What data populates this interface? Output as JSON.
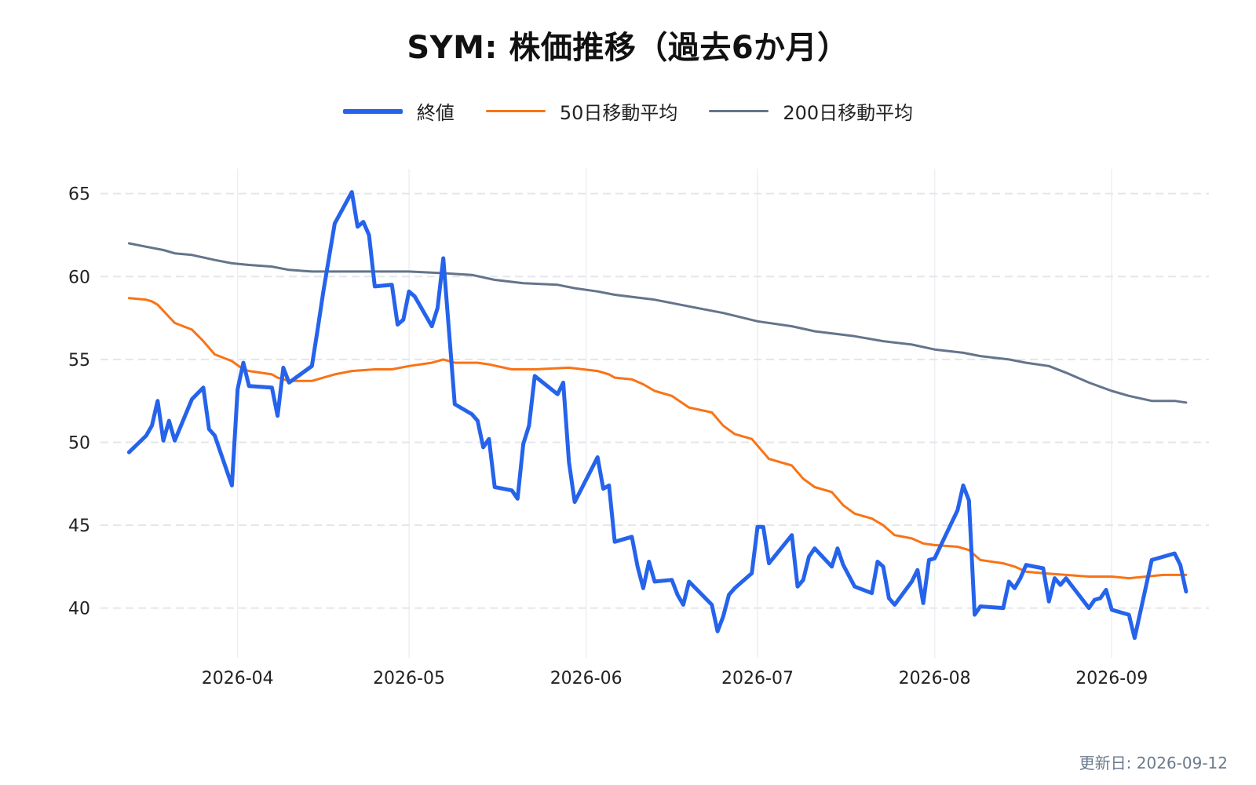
{
  "chart_data": {
    "type": "line",
    "title": "SYM: 株価推移（過去6か月）",
    "xlabel": "",
    "ylabel": "",
    "ylim": [
      37,
      66.5
    ],
    "y_ticks": [
      40,
      45,
      50,
      55,
      60,
      65
    ],
    "x_ticks": [
      {
        "label": "2026-04",
        "date": "2026-04-01"
      },
      {
        "label": "2026-05",
        "date": "2026-05-01"
      },
      {
        "label": "2026-06",
        "date": "2026-06-01"
      },
      {
        "label": "2026-07",
        "date": "2026-07-01"
      },
      {
        "label": "2026-08",
        "date": "2026-08-01"
      },
      {
        "label": "2026-09",
        "date": "2026-09-01"
      }
    ],
    "xlim": [
      "2026-03-08",
      "2026-09-18"
    ],
    "grid": true,
    "legend_position": "top-center",
    "series": [
      {
        "name": "終値",
        "color": "#2563eb",
        "width": 5,
        "points": [
          [
            "2026-03-13",
            49.4
          ],
          [
            "2026-03-16",
            50.4
          ],
          [
            "2026-03-17",
            51.0
          ],
          [
            "2026-03-18",
            52.5
          ],
          [
            "2026-03-19",
            50.1
          ],
          [
            "2026-03-20",
            51.3
          ],
          [
            "2026-03-21",
            50.1
          ],
          [
            "2026-03-24",
            52.6
          ],
          [
            "2026-03-26",
            53.3
          ],
          [
            "2026-03-27",
            50.8
          ],
          [
            "2026-03-28",
            50.4
          ],
          [
            "2026-03-31",
            47.4
          ],
          [
            "2026-04-01",
            53.2
          ],
          [
            "2026-04-02",
            54.8
          ],
          [
            "2026-04-03",
            53.4
          ],
          [
            "2026-04-07",
            53.3
          ],
          [
            "2026-04-08",
            51.6
          ],
          [
            "2026-04-09",
            54.5
          ],
          [
            "2026-04-10",
            53.6
          ],
          [
            "2026-04-14",
            54.6
          ],
          [
            "2026-04-15",
            56.8
          ],
          [
            "2026-04-16",
            59.1
          ],
          [
            "2026-04-18",
            63.2
          ],
          [
            "2026-04-21",
            65.1
          ],
          [
            "2026-04-22",
            63.0
          ],
          [
            "2026-04-23",
            63.3
          ],
          [
            "2026-04-24",
            62.5
          ],
          [
            "2026-04-25",
            59.4
          ],
          [
            "2026-04-28",
            59.5
          ],
          [
            "2026-04-29",
            57.1
          ],
          [
            "2026-04-30",
            57.4
          ],
          [
            "2026-05-01",
            59.1
          ],
          [
            "2026-05-02",
            58.8
          ],
          [
            "2026-05-05",
            57.0
          ],
          [
            "2026-05-06",
            58.1
          ],
          [
            "2026-05-07",
            61.1
          ],
          [
            "2026-05-09",
            52.3
          ],
          [
            "2026-05-12",
            51.7
          ],
          [
            "2026-05-13",
            51.3
          ],
          [
            "2026-05-14",
            49.7
          ],
          [
            "2026-05-15",
            50.2
          ],
          [
            "2026-05-16",
            47.3
          ],
          [
            "2026-05-19",
            47.1
          ],
          [
            "2026-05-20",
            46.6
          ],
          [
            "2026-05-21",
            49.9
          ],
          [
            "2026-05-22",
            51.0
          ],
          [
            "2026-05-23",
            54.0
          ],
          [
            "2026-05-27",
            52.9
          ],
          [
            "2026-05-28",
            53.6
          ],
          [
            "2026-05-29",
            48.8
          ],
          [
            "2026-05-30",
            46.4
          ],
          [
            "2026-06-03",
            49.1
          ],
          [
            "2026-06-04",
            47.2
          ],
          [
            "2026-06-05",
            47.4
          ],
          [
            "2026-06-06",
            44.0
          ],
          [
            "2026-06-09",
            44.3
          ],
          [
            "2026-06-10",
            42.5
          ],
          [
            "2026-06-11",
            41.2
          ],
          [
            "2026-06-12",
            42.8
          ],
          [
            "2026-06-13",
            41.6
          ],
          [
            "2026-06-16",
            41.7
          ],
          [
            "2026-06-17",
            40.8
          ],
          [
            "2026-06-18",
            40.2
          ],
          [
            "2026-06-19",
            41.6
          ],
          [
            "2026-06-23",
            40.2
          ],
          [
            "2026-06-24",
            38.6
          ],
          [
            "2026-06-25",
            39.5
          ],
          [
            "2026-06-26",
            40.8
          ],
          [
            "2026-06-27",
            41.2
          ],
          [
            "2026-06-30",
            42.1
          ],
          [
            "2026-07-01",
            44.9
          ],
          [
            "2026-07-02",
            44.9
          ],
          [
            "2026-07-03",
            42.7
          ],
          [
            "2026-07-07",
            44.4
          ],
          [
            "2026-07-08",
            41.3
          ],
          [
            "2026-07-09",
            41.7
          ],
          [
            "2026-07-10",
            43.1
          ],
          [
            "2026-07-11",
            43.6
          ],
          [
            "2026-07-14",
            42.5
          ],
          [
            "2026-07-15",
            43.6
          ],
          [
            "2026-07-16",
            42.6
          ],
          [
            "2026-07-18",
            41.3
          ],
          [
            "2026-07-21",
            40.9
          ],
          [
            "2026-07-22",
            42.8
          ],
          [
            "2026-07-23",
            42.5
          ],
          [
            "2026-07-24",
            40.6
          ],
          [
            "2026-07-25",
            40.2
          ],
          [
            "2026-07-28",
            41.6
          ],
          [
            "2026-07-29",
            42.3
          ],
          [
            "2026-07-30",
            40.3
          ],
          [
            "2026-07-31",
            42.9
          ],
          [
            "2026-08-01",
            43.0
          ],
          [
            "2026-08-05",
            45.9
          ],
          [
            "2026-08-06",
            47.4
          ],
          [
            "2026-08-07",
            46.5
          ],
          [
            "2026-08-08",
            39.6
          ],
          [
            "2026-08-09",
            40.1
          ],
          [
            "2026-08-13",
            40.0
          ],
          [
            "2026-08-14",
            41.6
          ],
          [
            "2026-08-15",
            41.2
          ],
          [
            "2026-08-16",
            41.8
          ],
          [
            "2026-08-17",
            42.6
          ],
          [
            "2026-08-20",
            42.4
          ],
          [
            "2026-08-21",
            40.4
          ],
          [
            "2026-08-22",
            41.8
          ],
          [
            "2026-08-23",
            41.4
          ],
          [
            "2026-08-24",
            41.8
          ],
          [
            "2026-08-28",
            40.0
          ],
          [
            "2026-08-29",
            40.5
          ],
          [
            "2026-08-30",
            40.6
          ],
          [
            "2026-08-31",
            41.1
          ],
          [
            "2026-09-01",
            39.9
          ],
          [
            "2026-09-04",
            39.6
          ],
          [
            "2026-09-05",
            38.2
          ],
          [
            "2026-09-08",
            42.9
          ],
          [
            "2026-09-12",
            43.3
          ],
          [
            "2026-09-13",
            42.6
          ],
          [
            "2026-09-14",
            41.0
          ]
        ]
      },
      {
        "name": "50日移動平均",
        "color": "#f97316",
        "width": 3,
        "points": [
          [
            "2026-03-13",
            58.7
          ],
          [
            "2026-03-16",
            58.6
          ],
          [
            "2026-03-17",
            58.5
          ],
          [
            "2026-03-18",
            58.3
          ],
          [
            "2026-03-21",
            57.2
          ],
          [
            "2026-03-24",
            56.8
          ],
          [
            "2026-03-26",
            56.1
          ],
          [
            "2026-03-28",
            55.3
          ],
          [
            "2026-03-31",
            54.9
          ],
          [
            "2026-04-02",
            54.4
          ],
          [
            "2026-04-03",
            54.3
          ],
          [
            "2026-04-07",
            54.1
          ],
          [
            "2026-04-08",
            53.9
          ],
          [
            "2026-04-10",
            53.7
          ],
          [
            "2026-04-14",
            53.7
          ],
          [
            "2026-04-16",
            53.9
          ],
          [
            "2026-04-18",
            54.1
          ],
          [
            "2026-04-21",
            54.3
          ],
          [
            "2026-04-25",
            54.4
          ],
          [
            "2026-04-28",
            54.4
          ],
          [
            "2026-05-01",
            54.6
          ],
          [
            "2026-05-05",
            54.8
          ],
          [
            "2026-05-07",
            55.0
          ],
          [
            "2026-05-09",
            54.8
          ],
          [
            "2026-05-13",
            54.8
          ],
          [
            "2026-05-15",
            54.7
          ],
          [
            "2026-05-19",
            54.4
          ],
          [
            "2026-05-23",
            54.4
          ],
          [
            "2026-05-29",
            54.5
          ],
          [
            "2026-06-03",
            54.3
          ],
          [
            "2026-06-05",
            54.1
          ],
          [
            "2026-06-06",
            53.9
          ],
          [
            "2026-06-09",
            53.8
          ],
          [
            "2026-06-11",
            53.5
          ],
          [
            "2026-06-13",
            53.1
          ],
          [
            "2026-06-16",
            52.8
          ],
          [
            "2026-06-19",
            52.1
          ],
          [
            "2026-06-23",
            51.8
          ],
          [
            "2026-06-25",
            51.0
          ],
          [
            "2026-06-27",
            50.5
          ],
          [
            "2026-06-30",
            50.2
          ],
          [
            "2026-07-03",
            49.0
          ],
          [
            "2026-07-07",
            48.6
          ],
          [
            "2026-07-09",
            47.8
          ],
          [
            "2026-07-11",
            47.3
          ],
          [
            "2026-07-14",
            47.0
          ],
          [
            "2026-07-16",
            46.2
          ],
          [
            "2026-07-18",
            45.7
          ],
          [
            "2026-07-21",
            45.4
          ],
          [
            "2026-07-23",
            45.0
          ],
          [
            "2026-07-25",
            44.4
          ],
          [
            "2026-07-28",
            44.2
          ],
          [
            "2026-07-30",
            43.9
          ],
          [
            "2026-08-01",
            43.8
          ],
          [
            "2026-08-05",
            43.7
          ],
          [
            "2026-08-07",
            43.5
          ],
          [
            "2026-08-09",
            42.9
          ],
          [
            "2026-08-13",
            42.7
          ],
          [
            "2026-08-15",
            42.5
          ],
          [
            "2026-08-17",
            42.2
          ],
          [
            "2026-08-20",
            42.1
          ],
          [
            "2026-08-24",
            42.0
          ],
          [
            "2026-08-28",
            41.9
          ],
          [
            "2026-09-01",
            41.9
          ],
          [
            "2026-09-04",
            41.8
          ],
          [
            "2026-09-07",
            41.9
          ],
          [
            "2026-09-10",
            42.0
          ],
          [
            "2026-09-14",
            42.0
          ]
        ]
      },
      {
        "name": "200日移動平均",
        "color": "#64748b",
        "width": 3,
        "points": [
          [
            "2026-03-13",
            62.0
          ],
          [
            "2026-03-16",
            61.8
          ],
          [
            "2026-03-19",
            61.6
          ],
          [
            "2026-03-21",
            61.4
          ],
          [
            "2026-03-24",
            61.3
          ],
          [
            "2026-03-28",
            61.0
          ],
          [
            "2026-03-31",
            60.8
          ],
          [
            "2026-04-03",
            60.7
          ],
          [
            "2026-04-07",
            60.6
          ],
          [
            "2026-04-10",
            60.4
          ],
          [
            "2026-04-14",
            60.3
          ],
          [
            "2026-04-18",
            60.3
          ],
          [
            "2026-04-25",
            60.3
          ],
          [
            "2026-05-01",
            60.3
          ],
          [
            "2026-05-07",
            60.2
          ],
          [
            "2026-05-12",
            60.1
          ],
          [
            "2026-05-16",
            59.8
          ],
          [
            "2026-05-21",
            59.6
          ],
          [
            "2026-05-27",
            59.5
          ],
          [
            "2026-05-30",
            59.3
          ],
          [
            "2026-06-03",
            59.1
          ],
          [
            "2026-06-06",
            58.9
          ],
          [
            "2026-06-13",
            58.6
          ],
          [
            "2026-06-19",
            58.2
          ],
          [
            "2026-06-25",
            57.8
          ],
          [
            "2026-07-01",
            57.3
          ],
          [
            "2026-07-07",
            57.0
          ],
          [
            "2026-07-11",
            56.7
          ],
          [
            "2026-07-18",
            56.4
          ],
          [
            "2026-07-23",
            56.1
          ],
          [
            "2026-07-28",
            55.9
          ],
          [
            "2026-08-01",
            55.6
          ],
          [
            "2026-08-06",
            55.4
          ],
          [
            "2026-08-09",
            55.2
          ],
          [
            "2026-08-14",
            55.0
          ],
          [
            "2026-08-17",
            54.8
          ],
          [
            "2026-08-21",
            54.6
          ],
          [
            "2026-08-24",
            54.2
          ],
          [
            "2026-08-28",
            53.6
          ],
          [
            "2026-09-01",
            53.1
          ],
          [
            "2026-09-04",
            52.8
          ],
          [
            "2026-09-08",
            52.5
          ],
          [
            "2026-09-12",
            52.5
          ],
          [
            "2026-09-14",
            52.4
          ]
        ]
      }
    ]
  },
  "footer": {
    "updated": "更新日: 2026-09-12"
  }
}
